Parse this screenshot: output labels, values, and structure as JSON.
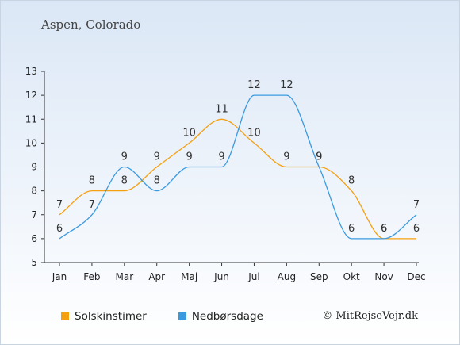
{
  "title": "Aspen, Colorado",
  "credit": "© MitRejseVejr.dk",
  "colors": {
    "sun": "#f5a00f",
    "rain": "#3a9ae0",
    "axis": "#333333"
  },
  "chart_data": {
    "type": "line",
    "categories": [
      "Jan",
      "Feb",
      "Mar",
      "Apr",
      "Maj",
      "Jun",
      "Jul",
      "Aug",
      "Sep",
      "Okt",
      "Nov",
      "Dec"
    ],
    "y_ticks": [
      5,
      6,
      7,
      8,
      9,
      10,
      11,
      12,
      13
    ],
    "ylim": [
      5,
      13
    ],
    "grid": false,
    "legend_position": "bottom-left",
    "series": [
      {
        "name": "Solskinstimer",
        "color": "#f5a00f",
        "values": [
          7,
          8,
          8,
          9,
          10,
          11,
          10,
          9,
          9,
          8,
          6,
          6
        ]
      },
      {
        "name": "Nedbørsdage",
        "color": "#3a9ae0",
        "values": [
          6,
          7,
          9,
          8,
          9,
          9,
          12,
          12,
          9,
          6,
          6,
          7
        ]
      }
    ]
  }
}
